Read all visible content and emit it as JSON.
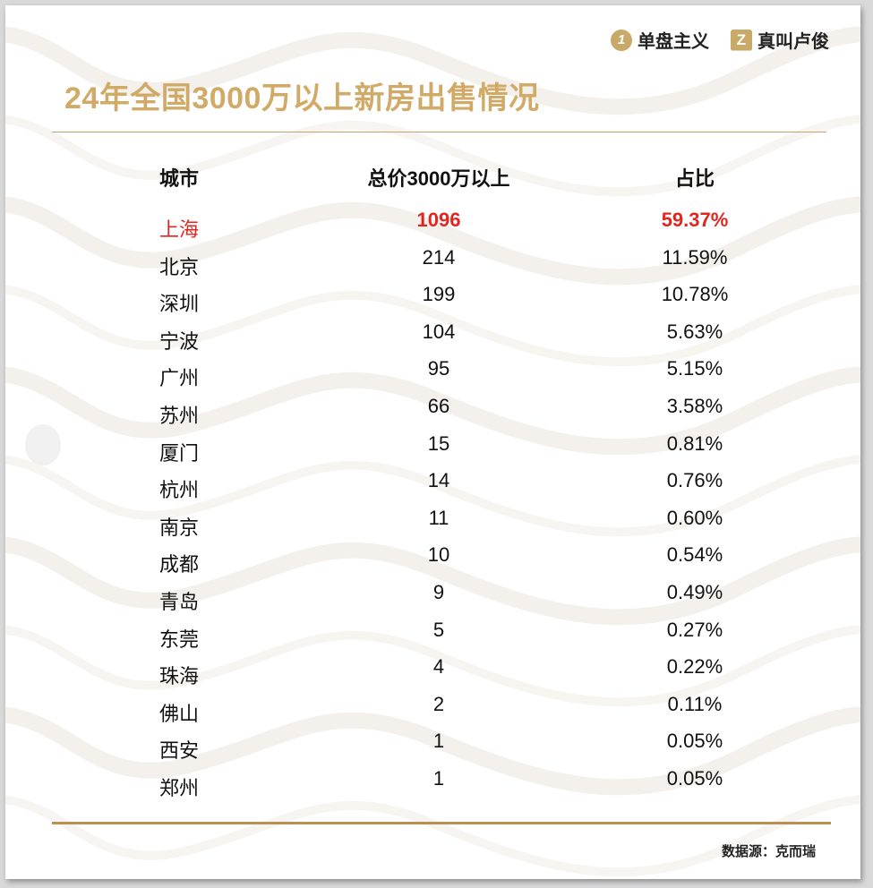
{
  "brands": [
    {
      "badge": "1",
      "name": "单盘主义"
    },
    {
      "badge": "Z",
      "name": "真叫卢俊"
    }
  ],
  "title": "24年全国3000万以上新房出售情况",
  "colors": {
    "accent": "#d2aa68",
    "highlight": "#e0261f",
    "text": "#111111",
    "rule": "#b98f52"
  },
  "chart_data": {
    "type": "table",
    "title": "24年全国3000万以上新房出售情况",
    "columns": [
      "城市",
      "总价3000万以上",
      "占比"
    ],
    "rows": [
      {
        "city": "上海",
        "count": "1096",
        "share": "59.37%",
        "highlight": true
      },
      {
        "city": "北京",
        "count": "214",
        "share": "11.59%"
      },
      {
        "city": "深圳",
        "count": "199",
        "share": "10.78%"
      },
      {
        "city": "宁波",
        "count": "104",
        "share": "5.63%"
      },
      {
        "city": "广州",
        "count": "95",
        "share": "5.15%"
      },
      {
        "city": "苏州",
        "count": "66",
        "share": "3.58%"
      },
      {
        "city": "厦门",
        "count": "15",
        "share": "0.81%"
      },
      {
        "city": "杭州",
        "count": "14",
        "share": "0.76%"
      },
      {
        "city": "南京",
        "count": "11",
        "share": "0.60%"
      },
      {
        "city": "成都",
        "count": "10",
        "share": "0.54%"
      },
      {
        "city": "青岛",
        "count": "9",
        "share": "0.49%"
      },
      {
        "city": "东莞",
        "count": "5",
        "share": "0.27%"
      },
      {
        "city": "珠海",
        "count": "4",
        "share": "0.22%"
      },
      {
        "city": "佛山",
        "count": "2",
        "share": "0.11%"
      },
      {
        "city": "西安",
        "count": "1",
        "share": "0.05%"
      },
      {
        "city": "郑州",
        "count": "1",
        "share": "0.05%"
      }
    ]
  },
  "source": "数据源：克而瑞"
}
